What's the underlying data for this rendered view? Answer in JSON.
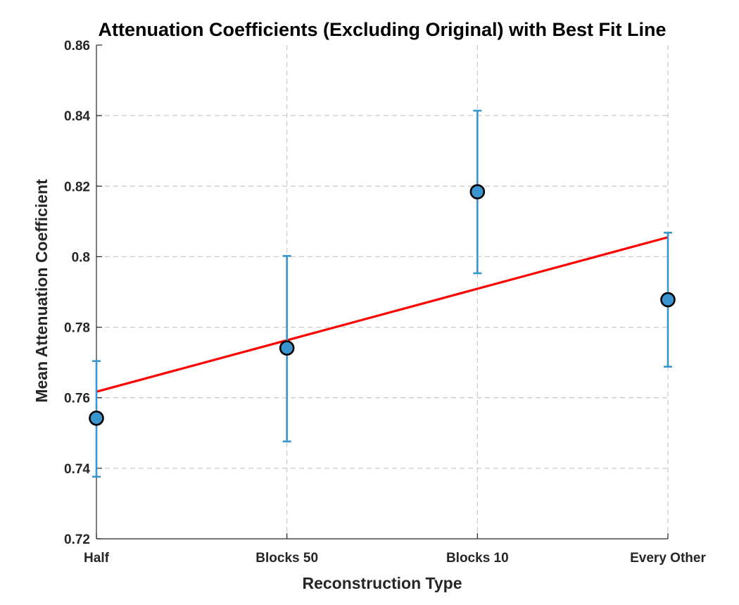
{
  "chart_data": {
    "type": "scatter",
    "title": "Attenuation Coefficients (Excluding Original) with Best Fit Line",
    "xlabel": "Reconstruction Type",
    "ylabel": "Mean Attenuation Coefficient",
    "categories": [
      "Half",
      "Blocks 50",
      "Blocks 10",
      "Every Other"
    ],
    "ylim": [
      0.72,
      0.86
    ],
    "yticks": [
      0.72,
      0.74,
      0.76,
      0.78,
      0.8,
      0.82,
      0.84,
      0.86
    ],
    "ytick_labels": [
      "0.72",
      "0.74",
      "0.76",
      "0.78",
      "0.8",
      "0.82",
      "0.84",
      "0.86"
    ],
    "grid": true,
    "series": [
      {
        "values": [
          0.7542,
          0.7741,
          0.8184,
          0.7878
        ],
        "error_lower": [
          0.7376,
          0.7476,
          0.7953,
          0.7688
        ],
        "error_upper": [
          0.7704,
          0.8002,
          0.8414,
          0.8068
        ],
        "color": "#3a95cf"
      }
    ],
    "fit_line": {
      "start": 0.7617,
      "end": 0.8055,
      "color": "#ff0000"
    }
  }
}
